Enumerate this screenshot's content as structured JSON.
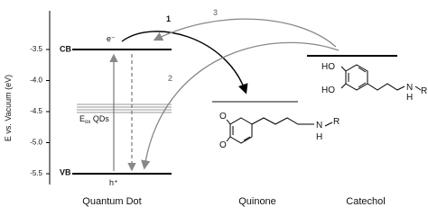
{
  "axis": {
    "label": "E vs. Vacuum (eV)",
    "ticks": [
      "-3.5",
      "-4.0",
      "-4.5",
      "-5.0",
      "-5.5"
    ]
  },
  "levels": {
    "cb": "CB",
    "vb": "VB",
    "electron": "e⁻",
    "hole": "h⁺",
    "eox": {
      "main": "E",
      "sub": "ox",
      "rest": " QDs"
    }
  },
  "arrows": [
    "1",
    "2",
    "3"
  ],
  "quinone": {
    "atoms": [
      "O",
      "O",
      "N",
      "H",
      "R"
    ]
  },
  "catechol": {
    "atoms": [
      "HO",
      "HO",
      "N",
      "H",
      "R"
    ]
  },
  "labels": {
    "quantum_dot": "Quantum Dot",
    "quinone": "Quinone",
    "catechol": "Catechol"
  }
}
